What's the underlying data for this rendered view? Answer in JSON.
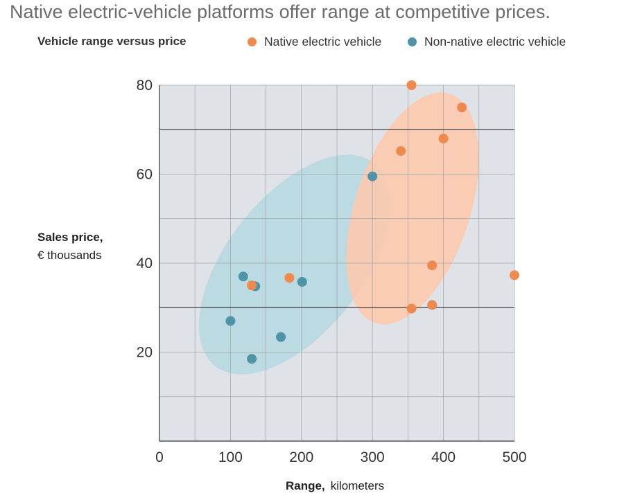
{
  "header": {
    "title": "Native electric-vehicle platforms offer range at competitive prices.",
    "subtitle": "Vehicle range versus price"
  },
  "chart_data": {
    "type": "scatter",
    "title": "Native electric-vehicle platforms offer range at competitive prices.",
    "subtitle": "Vehicle range versus price",
    "xlabel": "Range,",
    "xunit": "kilometers",
    "ylabel": "Sales price,",
    "yunit": "€ thousands",
    "xlim": [
      0,
      500
    ],
    "ylim": [
      0,
      80
    ],
    "xticks": [
      "0",
      "100",
      "200",
      "300",
      "400",
      "500"
    ],
    "yticks": [
      "20",
      "40",
      "60",
      "80"
    ],
    "grid": true,
    "legend_position": "top",
    "series": [
      {
        "name": "Native electric vehicle",
        "color": "#f0894e",
        "cluster_color": "#fdc9ae",
        "points": [
          {
            "x": 355,
            "y": 80
          },
          {
            "x": 426,
            "y": 75
          },
          {
            "x": 400,
            "y": 68
          },
          {
            "x": 340,
            "y": 65.2
          },
          {
            "x": 384,
            "y": 39.5
          },
          {
            "x": 500,
            "y": 37.3
          },
          {
            "x": 183,
            "y": 36.7
          },
          {
            "x": 130,
            "y": 35
          },
          {
            "x": 384,
            "y": 30.6
          },
          {
            "x": 355,
            "y": 29.8
          }
        ]
      },
      {
        "name": "Non-native electric vehicle",
        "color": "#4f93a8",
        "cluster_color": "#b7d8e0",
        "points": [
          {
            "x": 300,
            "y": 59.5
          },
          {
            "x": 118,
            "y": 37
          },
          {
            "x": 201,
            "y": 35.8
          },
          {
            "x": 135,
            "y": 34.8
          },
          {
            "x": 100,
            "y": 27
          },
          {
            "x": 171,
            "y": 23.4
          },
          {
            "x": 130,
            "y": 18.5
          }
        ]
      }
    ]
  }
}
